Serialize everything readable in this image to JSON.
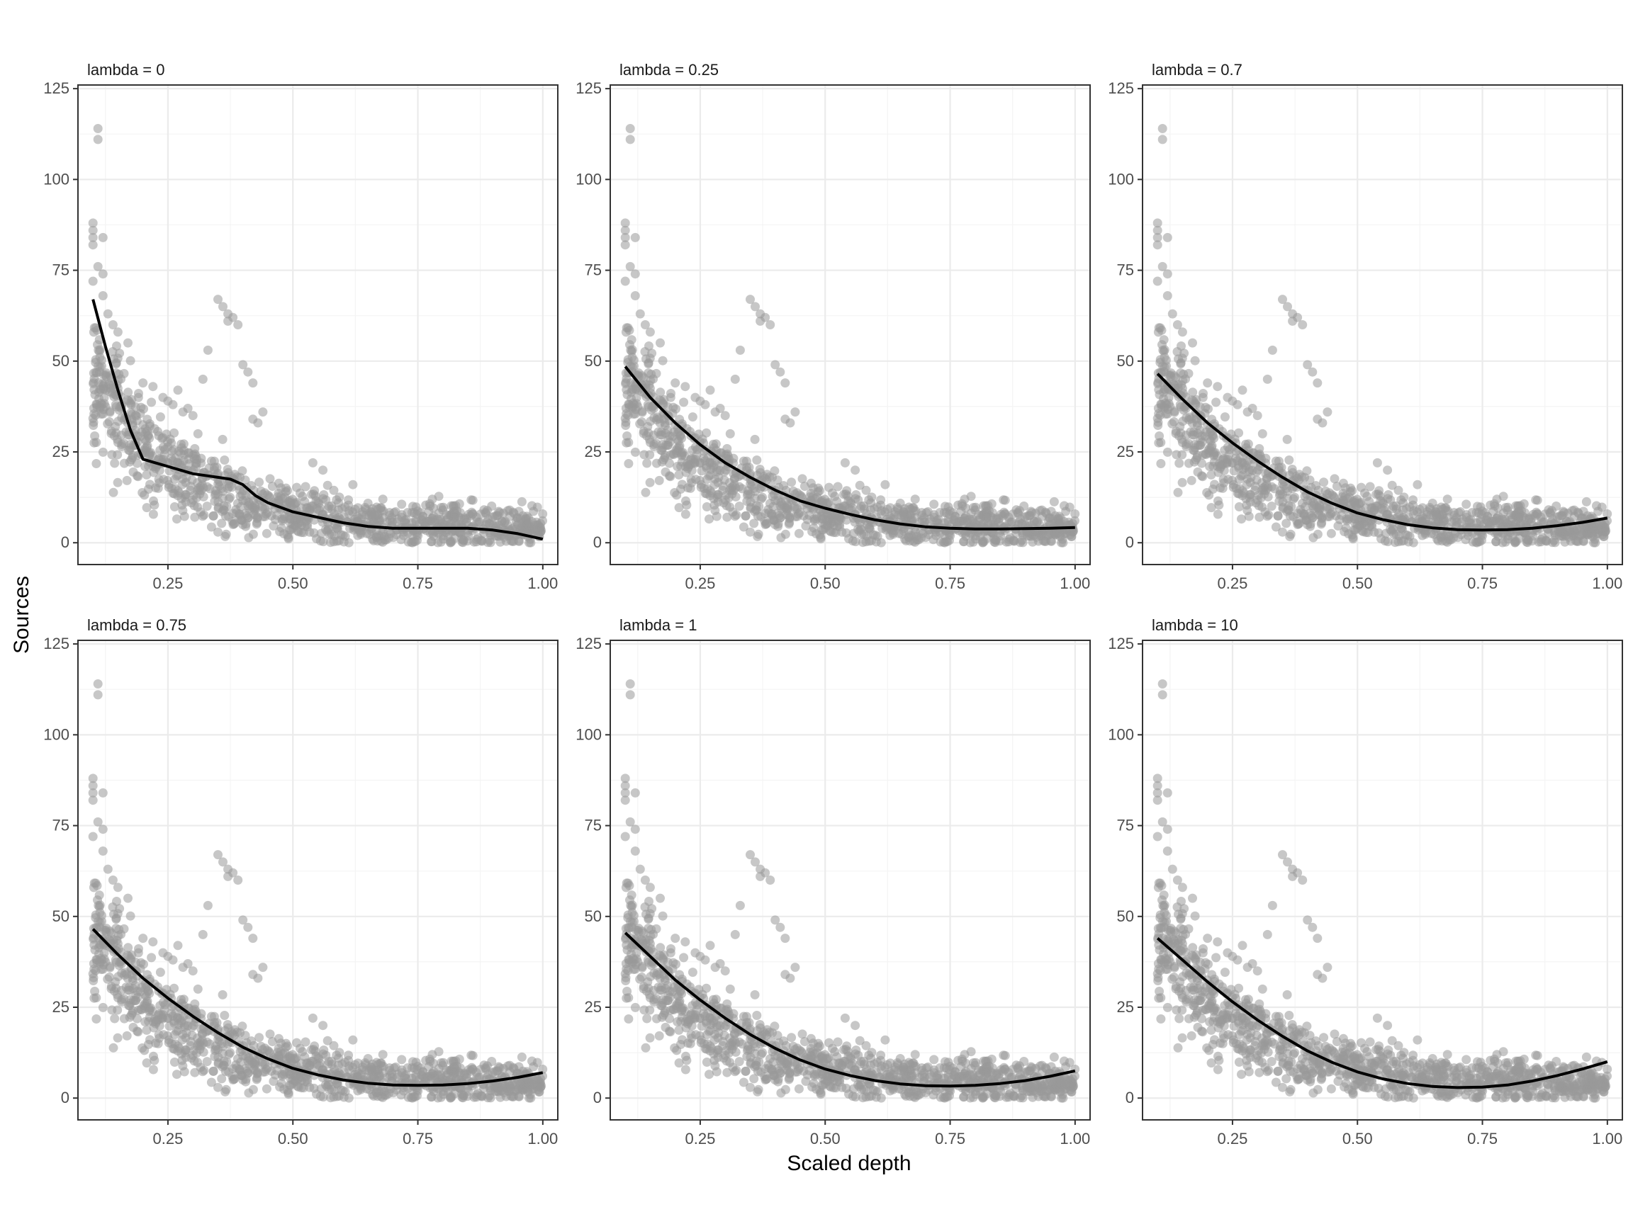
{
  "chart_data": {
    "type": "scatter",
    "layout": "facet grid, 2 rows x 3 columns",
    "xlabel": "Scaled depth",
    "ylabel": "Sources",
    "xlim": [
      0.07,
      1.03
    ],
    "ylim": [
      -6,
      126
    ],
    "x_ticks": [
      0.25,
      0.5,
      0.75,
      1.0
    ],
    "x_tick_labels": [
      "0.25",
      "0.50",
      "0.75",
      "1.00"
    ],
    "y_ticks": [
      0,
      25,
      50,
      75,
      100,
      125
    ],
    "y_tick_labels": [
      "0",
      "25",
      "50",
      "75",
      "100",
      "125"
    ],
    "grid": true,
    "point_color": "#999999",
    "line_color": "#000000",
    "panel_border_color": "#333333",
    "grid_color": "#ebebeb",
    "points": {
      "description": "same scatter in every panel",
      "x": [
        0.1,
        0.1,
        0.1,
        0.1,
        0.1,
        0.11,
        0.11,
        0.11,
        0.12,
        0.12,
        0.12,
        0.13,
        0.14,
        0.15,
        0.17,
        0.35,
        0.36,
        0.37,
        0.38,
        0.33,
        0.4,
        0.41,
        0.42,
        0.32,
        0.37,
        0.39,
        0.42,
        0.44,
        0.43,
        0.2,
        0.22,
        0.24,
        0.26,
        0.28,
        0.3,
        0.31,
        0.27,
        0.25,
        0.29,
        0.54,
        0.56,
        0.62,
        0.68,
        0.74,
        0.8,
        0.86,
        0.9,
        0.95
      ],
      "y": [
        88,
        86,
        84,
        82,
        72,
        114,
        111,
        76,
        74,
        68,
        84,
        63,
        60,
        58,
        55,
        67,
        65,
        63,
        62,
        53,
        49,
        47,
        44,
        45,
        61,
        60,
        34,
        36,
        33,
        44,
        43,
        40,
        38,
        36,
        35,
        30,
        42,
        39,
        37,
        22,
        20,
        16,
        12,
        10,
        9,
        8,
        7,
        5
      ],
      "bulk": "about 1000 points forming a decaying cloud from roughly 5-55 at x=0.1 down to 0-10 near x=1.0"
    },
    "panels": [
      {
        "label": "lambda = 0",
        "fit": {
          "x": [
            0.1,
            0.125,
            0.15,
            0.175,
            0.2,
            0.225,
            0.25,
            0.275,
            0.3,
            0.325,
            0.35,
            0.375,
            0.4,
            0.425,
            0.45,
            0.5,
            0.55,
            0.6,
            0.65,
            0.7,
            0.75,
            0.8,
            0.85,
            0.9,
            0.95,
            1.0
          ],
          "y": [
            67,
            54,
            42,
            31,
            23,
            22,
            21,
            20,
            19,
            18.5,
            18,
            17.5,
            16,
            13,
            11,
            8.5,
            7,
            5.5,
            4.5,
            4,
            4,
            4,
            4,
            3.5,
            2.5,
            1
          ]
        }
      },
      {
        "label": "lambda = 0.25",
        "fit": {
          "x": [
            0.1,
            0.15,
            0.2,
            0.25,
            0.3,
            0.35,
            0.4,
            0.45,
            0.5,
            0.55,
            0.6,
            0.65,
            0.7,
            0.75,
            0.8,
            0.85,
            0.9,
            0.95,
            1.0
          ],
          "y": [
            48.5,
            40,
            33,
            27,
            22,
            18,
            14.5,
            11.5,
            9.5,
            7.8,
            6.3,
            5.2,
            4.4,
            4,
            3.8,
            3.8,
            3.9,
            4,
            4.2
          ]
        }
      },
      {
        "label": "lambda = 0.7",
        "fit": {
          "x": [
            0.1,
            0.15,
            0.2,
            0.25,
            0.3,
            0.35,
            0.4,
            0.45,
            0.5,
            0.55,
            0.6,
            0.65,
            0.7,
            0.75,
            0.8,
            0.85,
            0.9,
            0.95,
            1.0
          ],
          "y": [
            46.5,
            39.5,
            33,
            27.5,
            22.5,
            18,
            14,
            10.8,
            8.2,
            6.4,
            5,
            4.1,
            3.6,
            3.5,
            3.6,
            4,
            4.7,
            5.6,
            6.8
          ]
        }
      },
      {
        "label": "lambda = 0.75",
        "fit": {
          "x": [
            0.1,
            0.15,
            0.2,
            0.25,
            0.3,
            0.35,
            0.4,
            0.45,
            0.5,
            0.55,
            0.6,
            0.65,
            0.7,
            0.75,
            0.8,
            0.85,
            0.9,
            0.95,
            1.0
          ],
          "y": [
            46.5,
            39.5,
            33,
            27.5,
            22.5,
            18,
            14,
            10.8,
            8.2,
            6.4,
            5,
            4.1,
            3.6,
            3.5,
            3.6,
            4,
            4.7,
            5.7,
            7
          ]
        }
      },
      {
        "label": "lambda = 1",
        "fit": {
          "x": [
            0.1,
            0.15,
            0.2,
            0.25,
            0.3,
            0.35,
            0.4,
            0.45,
            0.5,
            0.55,
            0.6,
            0.65,
            0.7,
            0.75,
            0.8,
            0.85,
            0.9,
            0.95,
            1.0
          ],
          "y": [
            45.5,
            39,
            32.5,
            27,
            22,
            17.5,
            13.7,
            10.5,
            8,
            6.2,
            4.8,
            3.9,
            3.4,
            3.3,
            3.5,
            4,
            4.8,
            6,
            7.5
          ]
        }
      },
      {
        "label": "lambda = 10",
        "fit": {
          "x": [
            0.1,
            0.15,
            0.2,
            0.25,
            0.3,
            0.35,
            0.4,
            0.45,
            0.5,
            0.55,
            0.6,
            0.65,
            0.7,
            0.75,
            0.8,
            0.85,
            0.9,
            0.95,
            1.0
          ],
          "y": [
            44,
            38,
            32,
            26.5,
            21.5,
            17,
            13,
            9.8,
            7.2,
            5.3,
            4,
            3.2,
            2.9,
            3,
            3.6,
            4.7,
            6.2,
            8,
            10
          ]
        }
      }
    ]
  }
}
